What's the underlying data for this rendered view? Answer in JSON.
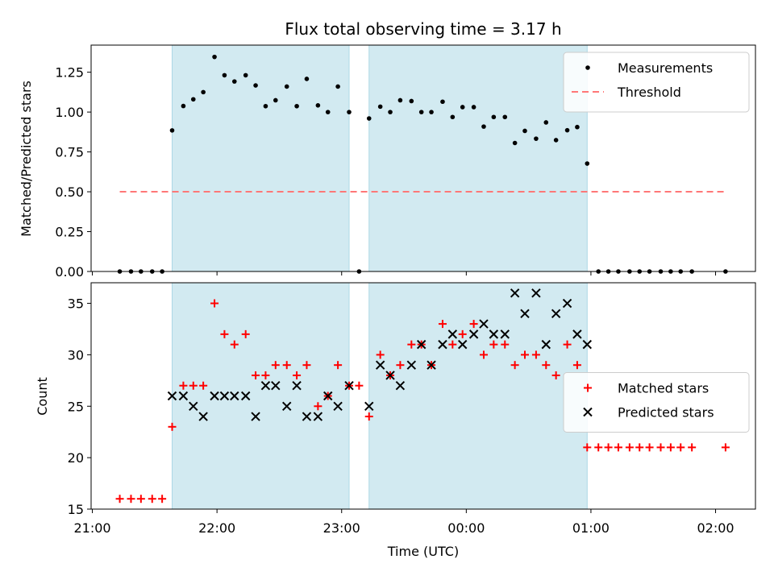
{
  "chart_data": {
    "type": "scatter",
    "title": "Flux total observing time = 3.17 h",
    "xlabel": "Time (UTC)",
    "x_tick_labels": [
      "21:00",
      "22:00",
      "23:00",
      "00:00",
      "01:00",
      "02:00"
    ],
    "x_ticks_hours": [
      21,
      22,
      23,
      24,
      25,
      26
    ],
    "xlim_hours": [
      20.99,
      26.32
    ],
    "shaded_intervals_hours": [
      [
        21.64,
        23.06
      ],
      [
        23.22,
        24.97
      ]
    ],
    "shade_color": "#add8e6",
    "panels": [
      {
        "ylabel": "Matched/Predicted stars",
        "ylim": [
          0,
          1.42
        ],
        "y_ticks": [
          0.0,
          0.25,
          0.5,
          0.75,
          1.0,
          1.25
        ],
        "y_tick_labels": [
          "0.00",
          "0.25",
          "0.50",
          "0.75",
          "1.00",
          "1.25"
        ],
        "series": [
          {
            "name": "Measurements",
            "marker": "dot",
            "color": "#000000",
            "x": [
              21.22,
              21.31,
              21.39,
              21.48,
              21.56,
              21.64,
              21.73,
              21.81,
              21.89,
              21.98,
              22.06,
              22.14,
              22.23,
              22.31,
              22.39,
              22.47,
              22.56,
              22.64,
              22.72,
              22.81,
              22.89,
              22.97,
              23.06,
              23.14,
              23.22,
              23.31,
              23.39,
              23.47,
              23.56,
              23.64,
              23.72,
              23.81,
              23.89,
              23.97,
              24.06,
              24.14,
              24.22,
              24.31,
              24.39,
              24.47,
              24.56,
              24.64,
              24.72,
              24.81,
              24.89,
              24.97,
              25.06,
              25.14,
              25.22,
              25.31,
              25.39,
              25.47,
              25.56,
              25.64,
              25.72,
              25.81,
              26.08
            ],
            "y": [
              0.0,
              0.0,
              0.0,
              0.0,
              0.0,
              0.885,
              1.038,
              1.08,
              1.125,
              1.346,
              1.231,
              1.192,
              1.231,
              1.167,
              1.037,
              1.074,
              1.16,
              1.037,
              1.208,
              1.042,
              1.0,
              1.16,
              1.0,
              0.0,
              0.96,
              1.034,
              1.0,
              1.074,
              1.069,
              1.0,
              1.0,
              1.065,
              0.969,
              1.031,
              1.031,
              0.909,
              0.969,
              0.969,
              0.806,
              0.882,
              0.833,
              0.935,
              0.824,
              0.886,
              0.906,
              0.677,
              0.0,
              0.0,
              0.0,
              0.0,
              0.0,
              0.0,
              0.0,
              0.0,
              0.0,
              0.0,
              0.0
            ]
          },
          {
            "name": "Threshold",
            "marker": "dashed-line",
            "color": "#ff7777",
            "x": [
              21.22,
              26.08
            ],
            "y": [
              0.5,
              0.5
            ]
          }
        ],
        "legend_placement": "upper right"
      },
      {
        "ylabel": "Count",
        "ylim": [
          15,
          37
        ],
        "y_ticks": [
          15,
          20,
          25,
          30,
          35
        ],
        "y_tick_labels": [
          "15",
          "20",
          "25",
          "30",
          "35"
        ],
        "series": [
          {
            "name": "Matched stars",
            "marker": "plus",
            "color": "#ff0000",
            "x": [
              21.22,
              21.31,
              21.39,
              21.48,
              21.56,
              21.64,
              21.73,
              21.81,
              21.89,
              21.98,
              22.06,
              22.14,
              22.23,
              22.31,
              22.39,
              22.47,
              22.56,
              22.64,
              22.72,
              22.81,
              22.89,
              22.97,
              23.06,
              23.14,
              23.22,
              23.31,
              23.39,
              23.47,
              23.56,
              23.64,
              23.72,
              23.81,
              23.89,
              23.97,
              24.06,
              24.14,
              24.22,
              24.31,
              24.39,
              24.47,
              24.56,
              24.64,
              24.72,
              24.81,
              24.89,
              24.97,
              25.06,
              25.14,
              25.22,
              25.31,
              25.39,
              25.47,
              25.56,
              25.64,
              25.72,
              25.81,
              26.08
            ],
            "y": [
              16,
              16,
              16,
              16,
              16,
              23,
              27,
              27,
              27,
              35,
              32,
              31,
              32,
              28,
              28,
              29,
              29,
              28,
              29,
              25,
              26,
              29,
              27,
              27,
              24,
              30,
              28,
              29,
              31,
              31,
              29,
              33,
              31,
              32,
              33,
              30,
              31,
              31,
              29,
              30,
              30,
              29,
              28,
              31,
              29,
              21,
              21,
              21,
              21,
              21,
              21,
              21,
              21,
              21,
              21,
              21,
              21
            ]
          },
          {
            "name": "Predicted stars",
            "marker": "x",
            "color": "#000000",
            "x": [
              21.64,
              21.73,
              21.81,
              21.89,
              21.98,
              22.06,
              22.14,
              22.23,
              22.31,
              22.39,
              22.47,
              22.56,
              22.64,
              22.72,
              22.81,
              22.89,
              22.97,
              23.06,
              23.22,
              23.31,
              23.39,
              23.47,
              23.56,
              23.64,
              23.72,
              23.81,
              23.89,
              23.97,
              24.06,
              24.14,
              24.22,
              24.31,
              24.39,
              24.47,
              24.56,
              24.64,
              24.72,
              24.81,
              24.89,
              24.97
            ],
            "y": [
              26,
              26,
              25,
              24,
              26,
              26,
              26,
              26,
              24,
              27,
              27,
              25,
              27,
              24,
              24,
              26,
              25,
              27,
              25,
              29,
              28,
              27,
              29,
              31,
              29,
              31,
              32,
              31,
              32,
              33,
              32,
              32,
              36,
              34,
              36,
              31,
              34,
              35,
              32,
              31
            ]
          }
        ],
        "legend_placement": "center right"
      }
    ]
  }
}
